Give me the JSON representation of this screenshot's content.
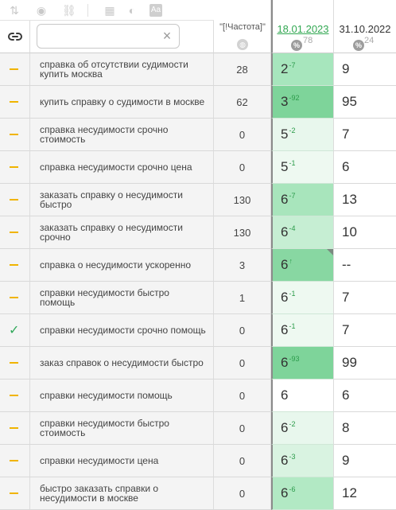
{
  "search": {
    "value": "",
    "placeholder": ""
  },
  "columns": {
    "frequency": "\"[!Частота]\"",
    "date1": "18.01.2023",
    "date2": "31.10.2022"
  },
  "date1_percent": "78",
  "date2_percent": "24",
  "percent_symbol": "%",
  "rows": [
    {
      "mark": "dash",
      "keyword": "справка об отсутствии судимости купить москва",
      "frequency": "28",
      "pos1": "2",
      "delta": "-7",
      "bg": "#a7e6bd",
      "pos2": "9"
    },
    {
      "mark": "dash",
      "keyword": "купить справку о судимости в москве",
      "frequency": "62",
      "pos1": "3",
      "delta": "-92",
      "bg": "#7ed49a",
      "pos2": "95"
    },
    {
      "mark": "dash",
      "keyword": "справка несудимости срочно стоимость",
      "frequency": "0",
      "pos1": "5",
      "delta": "-2",
      "bg": "#e8f7ed",
      "pos2": "7"
    },
    {
      "mark": "dash",
      "keyword": "справка несудимости срочно цена",
      "frequency": "0",
      "pos1": "5",
      "delta": "-1",
      "bg": "#eef9f1",
      "pos2": "6"
    },
    {
      "mark": "dash",
      "keyword": "заказать справку о несудимости быстро",
      "frequency": "130",
      "pos1": "6",
      "delta": "-7",
      "bg": "#a8e5bc",
      "pos2": "13"
    },
    {
      "mark": "dash",
      "keyword": "заказать справку о несудимости срочно",
      "frequency": "130",
      "pos1": "6",
      "delta": "-4",
      "bg": "#c6eed3",
      "pos2": "10"
    },
    {
      "mark": "dash",
      "keyword": "справка о несудимости ускоренно",
      "frequency": "3",
      "pos1": "6",
      "delta": "↑",
      "bg": "#88d7a2",
      "pos2": "--"
    },
    {
      "mark": "dash",
      "keyword": "справки несудимости быстро помощь",
      "frequency": "1",
      "pos1": "6",
      "delta": "-1",
      "bg": "#eef9f1",
      "pos2": "7"
    },
    {
      "mark": "check",
      "keyword": "справки несудимости срочно помощь",
      "frequency": "0",
      "pos1": "6",
      "delta": "-1",
      "bg": "#eef9f1",
      "pos2": "7"
    },
    {
      "mark": "dash",
      "keyword": "заказ справок о несудимости быстро",
      "frequency": "0",
      "pos1": "6",
      "delta": "-93",
      "bg": "#7ed49a",
      "pos2": "99"
    },
    {
      "mark": "dash",
      "keyword": "справки несудимости помощь",
      "frequency": "0",
      "pos1": "6",
      "delta": "",
      "bg": "#ffffff",
      "pos2": "6"
    },
    {
      "mark": "dash",
      "keyword": "справки несудимости быстро стоимость",
      "frequency": "0",
      "pos1": "6",
      "delta": "-2",
      "bg": "#e8f7ed",
      "pos2": "8"
    },
    {
      "mark": "dash",
      "keyword": "справки несудимости цена",
      "frequency": "0",
      "pos1": "6",
      "delta": "-3",
      "bg": "#d9f3e1",
      "pos2": "9"
    },
    {
      "mark": "dash",
      "keyword": "быстро заказать справки о несудимости в москве",
      "frequency": "0",
      "pos1": "6",
      "delta": "-6",
      "bg": "#b2e9c4",
      "pos2": "12"
    }
  ]
}
